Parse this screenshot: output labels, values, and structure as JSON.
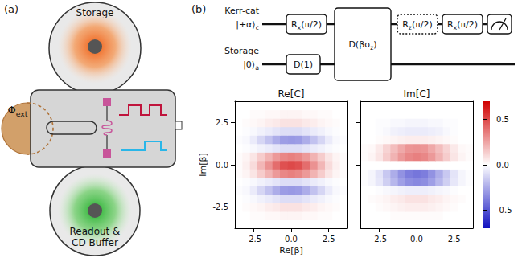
{
  "panel_a": {
    "letter": "(a)",
    "top_resonator": "Storage",
    "bottom_resonator": [
      "Readout &",
      "CD Buffer"
    ],
    "flux": [
      {
        "text": "Φ"
      },
      {
        "text": "ext",
        "sub": true
      }
    ]
  },
  "panel_b": {
    "letter": "(b)",
    "circuit": {
      "wires": [
        {
          "name": "Kerr-cat",
          "state": [
            {
              "text": "|+α⟩"
            },
            {
              "text": "c",
              "sub": true
            }
          ]
        },
        {
          "name": "Storage",
          "state": [
            {
              "text": "|0⟩"
            },
            {
              "text": "a",
              "sub": true
            }
          ]
        }
      ],
      "gates": [
        {
          "type": "gate",
          "wires": [
            0
          ],
          "label": [
            {
              "text": "R"
            },
            {
              "text": "x",
              "sub": true
            },
            {
              "text": "(π/2)"
            }
          ]
        },
        {
          "type": "gate",
          "wires": [
            1
          ],
          "label": [
            {
              "text": "D(1)"
            }
          ]
        },
        {
          "type": "gate",
          "wires": [
            0,
            1
          ],
          "label": [
            {
              "text": "D(βσ"
            },
            {
              "text": "z",
              "sub": true
            },
            {
              "text": ")"
            }
          ]
        },
        {
          "type": "gate",
          "wires": [
            0
          ],
          "line_style": "dotted",
          "label": [
            {
              "text": "R"
            },
            {
              "text": "z",
              "sub": true
            },
            {
              "text": "(π/2)"
            }
          ]
        },
        {
          "type": "gate",
          "wires": [
            0
          ],
          "label": [
            {
              "text": "R"
            },
            {
              "text": "x",
              "sub": true
            },
            {
              "text": "(π/2)"
            }
          ]
        },
        {
          "type": "measure",
          "wires": [
            0
          ]
        }
      ]
    }
  },
  "chart_data": [
    {
      "type": "heatmap",
      "title": "Re[C]",
      "xlabel": "Re[β]",
      "ylabel": "Im[β]",
      "x": [
        -3.5,
        -3,
        -2.5,
        -2,
        -1.5,
        -1,
        -0.5,
        0,
        0.5,
        1,
        1.5,
        2,
        2.5,
        3,
        3.5
      ],
      "y": [
        -3.5,
        -3,
        -2.5,
        -2,
        -1.5,
        -1,
        -0.5,
        0,
        0.5,
        1,
        1.5,
        2,
        2.5,
        3,
        3.5
      ],
      "cells": [
        [
          0,
          0,
          0,
          0,
          0,
          0,
          0,
          0,
          0,
          0,
          0,
          0,
          0,
          0,
          0
        ],
        [
          0,
          0,
          0.01,
          0.01,
          0.02,
          0.02,
          0.03,
          0.03,
          0.03,
          0.02,
          0.02,
          0.01,
          0.01,
          0,
          0
        ],
        [
          0,
          0.01,
          0.02,
          0.03,
          0.05,
          0.06,
          0.08,
          0.08,
          0.08,
          0.06,
          0.05,
          0.03,
          0.02,
          0.01,
          0
        ],
        [
          0,
          -0.01,
          -0.02,
          -0.04,
          -0.06,
          -0.08,
          -0.1,
          -0.1,
          -0.1,
          -0.08,
          -0.06,
          -0.04,
          -0.02,
          -0.01,
          0
        ],
        [
          -0.01,
          -0.02,
          -0.06,
          -0.12,
          -0.18,
          -0.24,
          -0.29,
          -0.3,
          -0.29,
          -0.24,
          -0.18,
          -0.12,
          -0.06,
          -0.02,
          -0.01
        ],
        [
          0,
          -0.01,
          -0.02,
          -0.04,
          -0.06,
          -0.08,
          -0.1,
          -0.1,
          -0.1,
          -0.08,
          -0.06,
          -0.04,
          -0.02,
          -0.01,
          0
        ],
        [
          0.01,
          0.03,
          0.07,
          0.14,
          0.21,
          0.28,
          0.33,
          0.35,
          0.33,
          0.28,
          0.21,
          0.14,
          0.07,
          0.03,
          0.01
        ],
        [
          0.01,
          0.04,
          0.1,
          0.2,
          0.3,
          0.4,
          0.48,
          0.5,
          0.48,
          0.4,
          0.3,
          0.2,
          0.1,
          0.04,
          0.01
        ],
        [
          0.01,
          0.03,
          0.07,
          0.14,
          0.21,
          0.28,
          0.33,
          0.35,
          0.33,
          0.28,
          0.21,
          0.14,
          0.07,
          0.03,
          0.01
        ],
        [
          0,
          -0.01,
          -0.02,
          -0.04,
          -0.06,
          -0.08,
          -0.1,
          -0.1,
          -0.1,
          -0.08,
          -0.06,
          -0.04,
          -0.02,
          -0.01,
          0
        ],
        [
          -0.01,
          -0.02,
          -0.06,
          -0.12,
          -0.18,
          -0.24,
          -0.29,
          -0.3,
          -0.29,
          -0.24,
          -0.18,
          -0.12,
          -0.06,
          -0.02,
          -0.01
        ],
        [
          0,
          -0.01,
          -0.02,
          -0.04,
          -0.06,
          -0.08,
          -0.1,
          -0.1,
          -0.1,
          -0.08,
          -0.06,
          -0.04,
          -0.02,
          -0.01,
          0
        ],
        [
          0,
          0.01,
          0.02,
          0.03,
          0.05,
          0.06,
          0.08,
          0.08,
          0.08,
          0.06,
          0.05,
          0.03,
          0.02,
          0.01,
          0
        ],
        [
          0,
          0,
          0.01,
          0.01,
          0.02,
          0.02,
          0.03,
          0.03,
          0.03,
          0.02,
          0.02,
          0.01,
          0.01,
          0,
          0
        ],
        [
          0,
          0,
          0,
          0,
          0,
          0,
          0,
          0,
          0,
          0,
          0,
          0,
          0,
          0,
          0
        ]
      ],
      "xlim": [
        -3.75,
        3.75
      ],
      "ylim": [
        -3.75,
        3.75
      ],
      "xticks": [
        -2.5,
        {
          "value": 0,
          "label": "0.0"
        },
        2.5
      ],
      "yticks": [
        -2.5,
        {
          "value": 0,
          "label": "0.0"
        },
        2.5
      ]
    },
    {
      "type": "heatmap",
      "title": "Im[C]",
      "tick_labels": "x",
      "x": [
        -3.5,
        -3,
        -2.5,
        -2,
        -1.5,
        -1,
        -0.5,
        0,
        0.5,
        1,
        1.5,
        2,
        2.5,
        3,
        3.5
      ],
      "y": [
        -3.5,
        -3,
        -2.5,
        -2,
        -1.5,
        -1,
        -0.5,
        0,
        0.5,
        1,
        1.5,
        2,
        2.5,
        3,
        3.5
      ],
      "cells": [
        [
          0,
          0,
          0,
          0,
          0,
          0,
          0,
          0,
          0,
          0,
          0,
          0,
          0,
          0,
          0
        ],
        [
          0,
          0,
          0,
          0,
          0.01,
          0.01,
          0.01,
          0.01,
          0.01,
          0.01,
          0.01,
          0,
          0,
          0,
          0
        ],
        [
          0,
          0,
          0.01,
          0.02,
          0.03,
          0.04,
          0.05,
          0.05,
          0.05,
          0.04,
          0.03,
          0.02,
          0.01,
          0,
          0
        ],
        [
          0,
          0.01,
          0.02,
          0.03,
          0.05,
          0.06,
          0.08,
          0.08,
          0.08,
          0.06,
          0.05,
          0.03,
          0.02,
          0.01,
          0
        ],
        [
          0,
          0,
          -0.01,
          -0.02,
          -0.03,
          -0.04,
          -0.05,
          -0.05,
          -0.05,
          -0.04,
          -0.03,
          -0.02,
          -0.01,
          0,
          0
        ],
        [
          -0.01,
          -0.03,
          -0.07,
          -0.14,
          -0.21,
          -0.28,
          -0.33,
          -0.35,
          -0.33,
          -0.28,
          -0.21,
          -0.14,
          -0.07,
          -0.03,
          -0.01
        ],
        [
          -0.01,
          -0.03,
          -0.08,
          -0.16,
          -0.24,
          -0.32,
          -0.38,
          -0.4,
          -0.38,
          -0.32,
          -0.24,
          -0.16,
          -0.08,
          -0.03,
          -0.01
        ],
        [
          0,
          0,
          0,
          0,
          0,
          0,
          0,
          0,
          0,
          0,
          0,
          0,
          0,
          0,
          0
        ],
        [
          0.01,
          0.03,
          0.07,
          0.14,
          0.21,
          0.28,
          0.33,
          0.35,
          0.33,
          0.28,
          0.21,
          0.14,
          0.07,
          0.03,
          0.01
        ],
        [
          0.01,
          0.02,
          0.06,
          0.12,
          0.18,
          0.24,
          0.29,
          0.3,
          0.29,
          0.24,
          0.18,
          0.12,
          0.06,
          0.02,
          0.01
        ],
        [
          0,
          0,
          0.01,
          0.02,
          0.03,
          0.04,
          0.05,
          0.05,
          0.05,
          0.04,
          0.03,
          0.02,
          0.01,
          0,
          0
        ],
        [
          0,
          0,
          -0.01,
          -0.02,
          -0.04,
          -0.05,
          -0.06,
          -0.06,
          -0.06,
          -0.05,
          -0.04,
          -0.02,
          -0.01,
          0,
          0
        ],
        [
          0,
          0,
          -0.01,
          -0.01,
          -0.02,
          -0.02,
          -0.03,
          -0.03,
          -0.03,
          -0.02,
          -0.02,
          -0.01,
          -0.01,
          0,
          0
        ],
        [
          0,
          0,
          0,
          0,
          0,
          0,
          0,
          0,
          0,
          0,
          0,
          0,
          0,
          0,
          0
        ],
        [
          0,
          0,
          0,
          0,
          0,
          0,
          0,
          0,
          0,
          0,
          0,
          0,
          0,
          0,
          0
        ]
      ],
      "xlim": [
        -3.75,
        3.75
      ],
      "ylim": [
        -3.75,
        3.75
      ],
      "xticks": [
        -2.5,
        {
          "value": 0,
          "label": "0.0"
        },
        2.5
      ],
      "yticks": [
        -2.5,
        {
          "value": 0,
          "label": "0.0"
        },
        2.5
      ]
    }
  ],
  "colorbar": {
    "range": [
      -0.7,
      0.7
    ],
    "ticks": [
      0.5,
      {
        "value": 0,
        "label": "0.0"
      },
      -0.5
    ]
  }
}
